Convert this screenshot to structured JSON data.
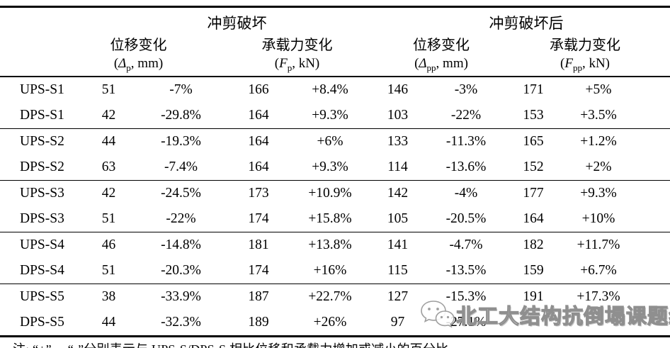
{
  "table": {
    "header": {
      "group1": "冲剪破坏",
      "group2": "冲剪破坏后",
      "subcols": [
        {
          "title": "位移变化",
          "pre": "(",
          "sym": "Δ",
          "sub": "p",
          "post": ", mm)"
        },
        {
          "title": "承载力变化",
          "pre": "(",
          "sym": "F",
          "sub": "p",
          "post": ", kN)"
        },
        {
          "title": "位移变化",
          "pre": "(",
          "sym": "Δ",
          "sub": "pp",
          "post": ", mm)"
        },
        {
          "title": "承载力变化",
          "pre": "(",
          "sym": "F",
          "sub": "pp",
          "post": ", kN)"
        }
      ]
    },
    "rows": [
      {
        "name": "UPS-S1",
        "values": [
          "51",
          "-7%",
          "166",
          "+8.4%",
          "146",
          "-3%",
          "171",
          "+5%"
        ]
      },
      {
        "name": "DPS-S1",
        "values": [
          "42",
          "-29.8%",
          "164",
          "+9.3%",
          "103",
          "-22%",
          "153",
          "+3.5%"
        ]
      },
      {
        "name": "UPS-S2",
        "values": [
          "44",
          "-19.3%",
          "164",
          "+6%",
          "133",
          "-11.3%",
          "165",
          "+1.2%"
        ]
      },
      {
        "name": "DPS-S2",
        "values": [
          "63",
          "-7.4%",
          "164",
          "+9.3%",
          "114",
          "-13.6%",
          "152",
          "+2%"
        ]
      },
      {
        "name": "UPS-S3",
        "values": [
          "42",
          "-24.5%",
          "173",
          "+10.9%",
          "142",
          "-4%",
          "177",
          "+9.3%"
        ]
      },
      {
        "name": "DPS-S3",
        "values": [
          "51",
          "-22%",
          "174",
          "+15.8%",
          "105",
          "-20.5%",
          "164",
          "+10%"
        ]
      },
      {
        "name": "UPS-S4",
        "values": [
          "46",
          "-14.8%",
          "181",
          "+13.8%",
          "141",
          "-4.7%",
          "182",
          "+11.7%"
        ]
      },
      {
        "name": "DPS-S4",
        "values": [
          "51",
          "-20.3%",
          "174",
          "+16%",
          "115",
          "-13.5%",
          "159",
          "+6.7%"
        ]
      },
      {
        "name": "UPS-S5",
        "values": [
          "38",
          "-33.9%",
          "187",
          "+22.7%",
          "127",
          "-15.3%",
          "191",
          "+17.3%"
        ]
      },
      {
        "name": "DPS-S5",
        "values": [
          "44",
          "-32.3%",
          "189",
          "+26%",
          "97",
          "-27.1%",
          "",
          ""
        ]
      }
    ]
  },
  "note": "注: “+”， “-”分别表示与 UPS-S/DPS-S 相比位移和承载力增加或减小的百分比。",
  "watermark": {
    "text": "北工大结构抗倒塌课题组",
    "icon": "wechat-icon"
  },
  "colors": {
    "rule": "#000000",
    "text": "#000000",
    "watermark_outline": "#8f8f8f"
  }
}
